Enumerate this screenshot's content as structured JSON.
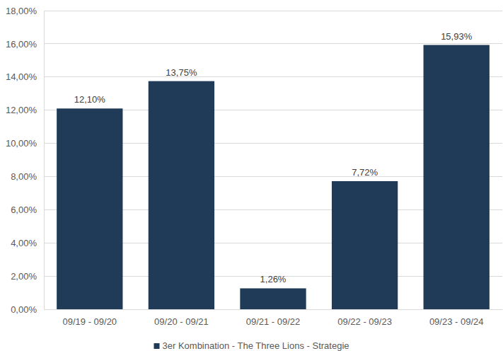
{
  "chart_data": {
    "type": "bar",
    "categories": [
      "09/19 - 09/20",
      "09/20 - 09/21",
      "09/21 - 09/22",
      "09/22 - 09/23",
      "09/23 - 09/24"
    ],
    "series": [
      {
        "name": "3er Kombination - The Three Lions - Strategie",
        "color": "#1f3b57",
        "values": [
          12.1,
          13.75,
          1.26,
          7.72,
          15.93
        ],
        "value_labels": [
          "12,10%",
          "13,75%",
          "1,26%",
          "7,72%",
          "15,93%"
        ]
      }
    ],
    "ylim": [
      0,
      18
    ],
    "yticks": [
      {
        "value": 0,
        "label": "0,00%"
      },
      {
        "value": 2,
        "label": "2,00%"
      },
      {
        "value": 4,
        "label": "4,00%"
      },
      {
        "value": 6,
        "label": "6,00%"
      },
      {
        "value": 8,
        "label": "8,00%"
      },
      {
        "value": 10,
        "label": "10,00%"
      },
      {
        "value": 12,
        "label": "12,00%"
      },
      {
        "value": 14,
        "label": "14,00%"
      },
      {
        "value": 16,
        "label": "16,00%"
      },
      {
        "value": 18,
        "label": "18,00%"
      }
    ],
    "grid": true,
    "legend": "bottom",
    "data_labels": true
  }
}
